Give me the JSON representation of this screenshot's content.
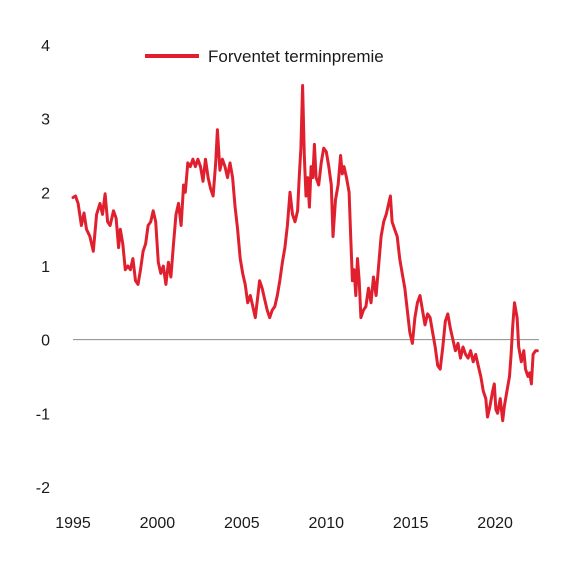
{
  "chart_data": {
    "type": "line",
    "title": "",
    "xlabel": "",
    "ylabel": "",
    "xlim": [
      1995,
      2022.6
    ],
    "ylim": [
      -2,
      4
    ],
    "x_ticks": [
      1995,
      2000,
      2005,
      2010,
      2015,
      2020
    ],
    "y_ticks": [
      4,
      3,
      2,
      1,
      0,
      -1,
      -2
    ],
    "x_tick_labels": [
      "1995",
      "2000",
      "2005",
      "2010",
      "2015",
      "2020"
    ],
    "y_tick_labels": [
      "4",
      "3",
      "2",
      "1",
      "0",
      "-1",
      "-2"
    ],
    "grid": false,
    "zero_line": true,
    "legend_position": "top-center",
    "series": [
      {
        "name": "Forventet terminpremie",
        "color": "#e0202e",
        "points": [
          [
            1995.0,
            1.93
          ],
          [
            1995.15,
            1.95
          ],
          [
            1995.3,
            1.85
          ],
          [
            1995.5,
            1.55
          ],
          [
            1995.65,
            1.72
          ],
          [
            1995.8,
            1.5
          ],
          [
            1996.0,
            1.4
          ],
          [
            1996.2,
            1.2
          ],
          [
            1996.4,
            1.7
          ],
          [
            1996.6,
            1.85
          ],
          [
            1996.75,
            1.7
          ],
          [
            1996.9,
            1.98
          ],
          [
            1997.05,
            1.6
          ],
          [
            1997.2,
            1.55
          ],
          [
            1997.4,
            1.75
          ],
          [
            1997.55,
            1.65
          ],
          [
            1997.7,
            1.25
          ],
          [
            1997.8,
            1.5
          ],
          [
            1997.95,
            1.3
          ],
          [
            1998.1,
            0.95
          ],
          [
            1998.25,
            1.0
          ],
          [
            1998.4,
            0.95
          ],
          [
            1998.55,
            1.1
          ],
          [
            1998.7,
            0.8
          ],
          [
            1998.85,
            0.75
          ],
          [
            1999.0,
            0.95
          ],
          [
            1999.15,
            1.2
          ],
          [
            1999.3,
            1.3
          ],
          [
            1999.45,
            1.55
          ],
          [
            1999.6,
            1.6
          ],
          [
            1999.75,
            1.75
          ],
          [
            1999.9,
            1.6
          ],
          [
            2000.05,
            1.05
          ],
          [
            2000.2,
            0.9
          ],
          [
            2000.35,
            1.0
          ],
          [
            2000.5,
            0.75
          ],
          [
            2000.65,
            1.05
          ],
          [
            2000.8,
            0.85
          ],
          [
            2000.95,
            1.3
          ],
          [
            2001.1,
            1.7
          ],
          [
            2001.25,
            1.85
          ],
          [
            2001.4,
            1.55
          ],
          [
            2001.55,
            2.1
          ],
          [
            2001.65,
            2.0
          ],
          [
            2001.8,
            2.4
          ],
          [
            2001.95,
            2.35
          ],
          [
            2002.1,
            2.45
          ],
          [
            2002.25,
            2.35
          ],
          [
            2002.4,
            2.45
          ],
          [
            2002.55,
            2.35
          ],
          [
            2002.7,
            2.15
          ],
          [
            2002.85,
            2.45
          ],
          [
            2003.0,
            2.2
          ],
          [
            2003.15,
            2.05
          ],
          [
            2003.3,
            1.95
          ],
          [
            2003.45,
            2.4
          ],
          [
            2003.55,
            2.85
          ],
          [
            2003.7,
            2.3
          ],
          [
            2003.85,
            2.45
          ],
          [
            2004.0,
            2.35
          ],
          [
            2004.15,
            2.2
          ],
          [
            2004.3,
            2.4
          ],
          [
            2004.45,
            2.2
          ],
          [
            2004.6,
            1.8
          ],
          [
            2004.75,
            1.5
          ],
          [
            2004.9,
            1.1
          ],
          [
            2005.05,
            0.9
          ],
          [
            2005.2,
            0.75
          ],
          [
            2005.35,
            0.5
          ],
          [
            2005.5,
            0.6
          ],
          [
            2005.65,
            0.45
          ],
          [
            2005.8,
            0.3
          ],
          [
            2005.95,
            0.6
          ],
          [
            2006.05,
            0.8
          ],
          [
            2006.2,
            0.7
          ],
          [
            2006.35,
            0.55
          ],
          [
            2006.5,
            0.4
          ],
          [
            2006.65,
            0.3
          ],
          [
            2006.8,
            0.4
          ],
          [
            2006.95,
            0.45
          ],
          [
            2007.1,
            0.6
          ],
          [
            2007.25,
            0.8
          ],
          [
            2007.4,
            1.05
          ],
          [
            2007.55,
            1.25
          ],
          [
            2007.7,
            1.55
          ],
          [
            2007.85,
            2.0
          ],
          [
            2008.0,
            1.7
          ],
          [
            2008.15,
            1.6
          ],
          [
            2008.3,
            1.75
          ],
          [
            2008.4,
            2.2
          ],
          [
            2008.5,
            2.6
          ],
          [
            2008.6,
            3.45
          ],
          [
            2008.7,
            2.5
          ],
          [
            2008.8,
            1.95
          ],
          [
            2008.9,
            2.2
          ],
          [
            2009.0,
            1.8
          ],
          [
            2009.1,
            2.35
          ],
          [
            2009.2,
            2.2
          ],
          [
            2009.3,
            2.65
          ],
          [
            2009.4,
            2.2
          ],
          [
            2009.55,
            2.1
          ],
          [
            2009.7,
            2.4
          ],
          [
            2009.85,
            2.6
          ],
          [
            2010.0,
            2.55
          ],
          [
            2010.15,
            2.35
          ],
          [
            2010.3,
            2.1
          ],
          [
            2010.4,
            1.4
          ],
          [
            2010.55,
            1.9
          ],
          [
            2010.7,
            2.1
          ],
          [
            2010.85,
            2.5
          ],
          [
            2010.95,
            2.25
          ],
          [
            2011.05,
            2.35
          ],
          [
            2011.2,
            2.2
          ],
          [
            2011.35,
            2.0
          ],
          [
            2011.45,
            1.4
          ],
          [
            2011.55,
            0.8
          ],
          [
            2011.65,
            0.95
          ],
          [
            2011.75,
            0.6
          ],
          [
            2011.85,
            1.1
          ],
          [
            2011.95,
            0.8
          ],
          [
            2012.05,
            0.3
          ],
          [
            2012.2,
            0.4
          ],
          [
            2012.35,
            0.45
          ],
          [
            2012.5,
            0.7
          ],
          [
            2012.65,
            0.5
          ],
          [
            2012.8,
            0.85
          ],
          [
            2012.95,
            0.6
          ],
          [
            2013.1,
            1.0
          ],
          [
            2013.25,
            1.4
          ],
          [
            2013.4,
            1.6
          ],
          [
            2013.55,
            1.7
          ],
          [
            2013.7,
            1.85
          ],
          [
            2013.8,
            1.95
          ],
          [
            2013.9,
            1.6
          ],
          [
            2014.05,
            1.5
          ],
          [
            2014.2,
            1.4
          ],
          [
            2014.35,
            1.1
          ],
          [
            2014.5,
            0.9
          ],
          [
            2014.65,
            0.7
          ],
          [
            2014.8,
            0.4
          ],
          [
            2014.95,
            0.1
          ],
          [
            2015.1,
            -0.05
          ],
          [
            2015.25,
            0.3
          ],
          [
            2015.4,
            0.5
          ],
          [
            2015.55,
            0.6
          ],
          [
            2015.7,
            0.4
          ],
          [
            2015.85,
            0.2
          ],
          [
            2016.0,
            0.35
          ],
          [
            2016.15,
            0.3
          ],
          [
            2016.3,
            0.1
          ],
          [
            2016.45,
            -0.1
          ],
          [
            2016.6,
            -0.35
          ],
          [
            2016.75,
            -0.4
          ],
          [
            2016.9,
            -0.1
          ],
          [
            2017.05,
            0.25
          ],
          [
            2017.2,
            0.35
          ],
          [
            2017.35,
            0.15
          ],
          [
            2017.5,
            0.0
          ],
          [
            2017.65,
            -0.15
          ],
          [
            2017.8,
            -0.05
          ],
          [
            2017.95,
            -0.25
          ],
          [
            2018.1,
            -0.1
          ],
          [
            2018.25,
            -0.2
          ],
          [
            2018.4,
            -0.25
          ],
          [
            2018.55,
            -0.15
          ],
          [
            2018.7,
            -0.3
          ],
          [
            2018.85,
            -0.2
          ],
          [
            2019.0,
            -0.35
          ],
          [
            2019.15,
            -0.5
          ],
          [
            2019.3,
            -0.7
          ],
          [
            2019.45,
            -0.8
          ],
          [
            2019.55,
            -1.05
          ],
          [
            2019.7,
            -0.9
          ],
          [
            2019.85,
            -0.7
          ],
          [
            2019.95,
            -0.6
          ],
          [
            2020.05,
            -0.95
          ],
          [
            2020.15,
            -1.0
          ],
          [
            2020.3,
            -0.8
          ],
          [
            2020.45,
            -1.1
          ],
          [
            2020.55,
            -0.9
          ],
          [
            2020.7,
            -0.7
          ],
          [
            2020.85,
            -0.5
          ],
          [
            2020.95,
            -0.2
          ],
          [
            2021.05,
            0.2
          ],
          [
            2021.15,
            0.5
          ],
          [
            2021.3,
            0.3
          ],
          [
            2021.4,
            -0.1
          ],
          [
            2021.55,
            -0.3
          ],
          [
            2021.7,
            -0.15
          ],
          [
            2021.8,
            -0.4
          ],
          [
            2021.95,
            -0.5
          ],
          [
            2022.05,
            -0.45
          ],
          [
            2022.15,
            -0.6
          ],
          [
            2022.25,
            -0.2
          ],
          [
            2022.4,
            -0.15
          ],
          [
            2022.5,
            -0.15
          ]
        ]
      }
    ]
  }
}
